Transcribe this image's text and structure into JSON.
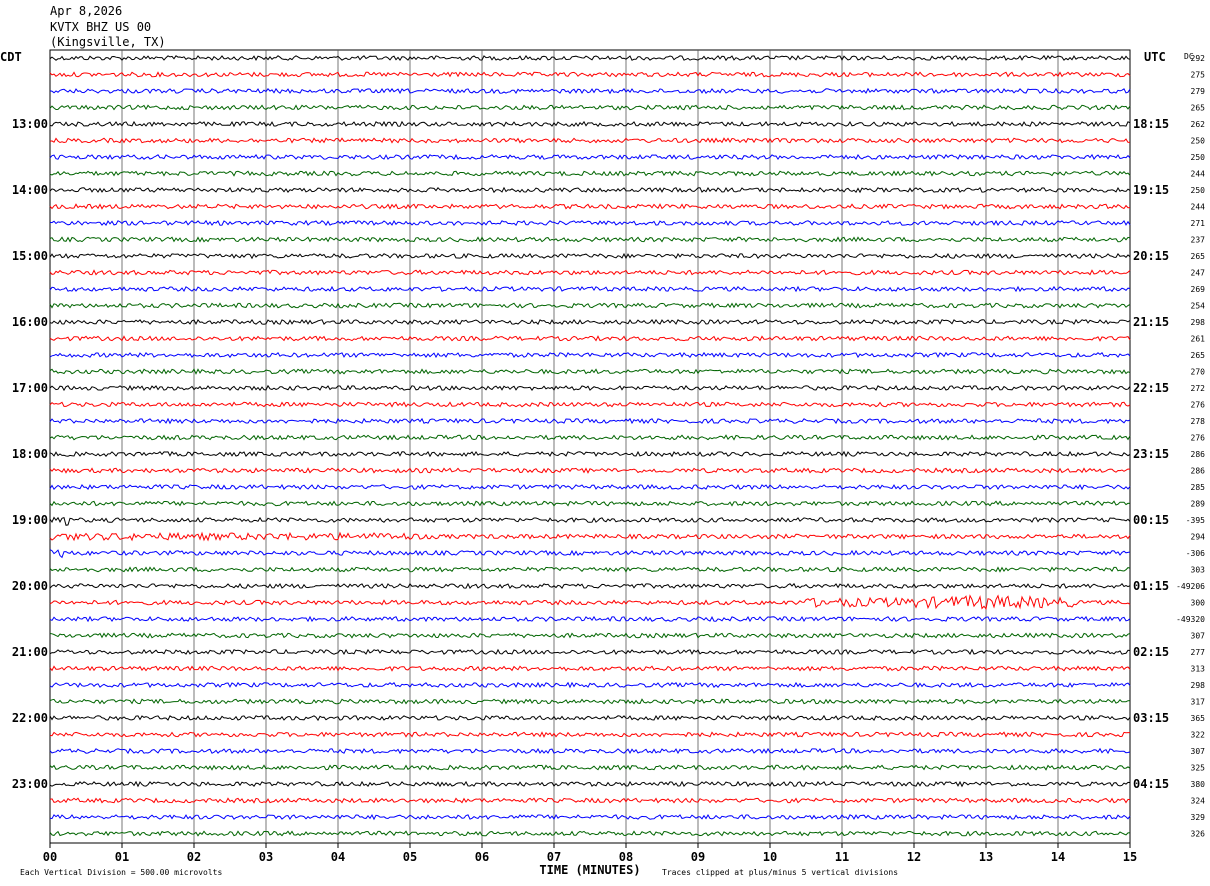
{
  "header": {
    "date": "Apr 8,2026",
    "station": "KVTX BHZ US 00",
    "location": "(Kingsville, TX)"
  },
  "chart_data": {
    "type": "line",
    "title": "KVTX BHZ US 00 (Kingsville, TX) Apr 8,2026",
    "xlabel": "TIME (MINUTES)",
    "x_ticks": [
      "00",
      "01",
      "02",
      "03",
      "04",
      "05",
      "06",
      "07",
      "08",
      "09",
      "10",
      "11",
      "12",
      "13",
      "14",
      "15"
    ],
    "xlim": [
      0,
      15
    ],
    "left_axis_label": "CDT",
    "right_axis_label": "UTC",
    "dc_label": "DC",
    "left_hour_labels": [
      "13:00",
      "14:00",
      "15:00",
      "16:00",
      "17:00",
      "18:00",
      "19:00",
      "20:00",
      "21:00",
      "22:00",
      "23:00"
    ],
    "right_hour_labels": [
      "18:15",
      "19:15",
      "20:15",
      "21:15",
      "22:15",
      "23:15",
      "00:15",
      "01:15",
      "02:15",
      "03:15",
      "04:15"
    ],
    "trace_colors": [
      "#000000",
      "#ff0000",
      "#0000ff",
      "#006400"
    ],
    "trace_count": 48,
    "grid": "vertical lines at each minute",
    "dc_offsets": [
      "292",
      "275",
      "279",
      "265",
      "262",
      "250",
      "250",
      "244",
      "250",
      "244",
      "271",
      "237",
      "265",
      "247",
      "269",
      "254",
      "298",
      "261",
      "265",
      "270",
      "272",
      "276",
      "278",
      "276",
      "286",
      "286",
      "285",
      "289",
      "-395",
      "294",
      "-306",
      "303",
      "-49206",
      "300",
      "-49320",
      "307",
      "277",
      "313",
      "298",
      "317",
      "365",
      "322",
      "307",
      "325",
      "380",
      "324",
      "329",
      "326"
    ],
    "events": [
      {
        "trace_index": 33,
        "start_min": 10.4,
        "end_min": 14.2,
        "amplitude": "elevated",
        "peak_min": 13.0
      },
      {
        "trace_index": 29,
        "start_min": 0.0,
        "end_min": 5.2,
        "amplitude": "moderate"
      },
      {
        "trace_index": 28,
        "start_min": 0.0,
        "end_min": 0.3,
        "amplitude": "spike"
      },
      {
        "trace_index": 30,
        "start_min": 0.0,
        "end_min": 0.2,
        "amplitude": "spike"
      }
    ],
    "footer_scale_note": "Each Vertical Division =  500.00 microvolts",
    "footer_clip_note": "Traces clipped at plus/minus 5 vertical divisions"
  }
}
